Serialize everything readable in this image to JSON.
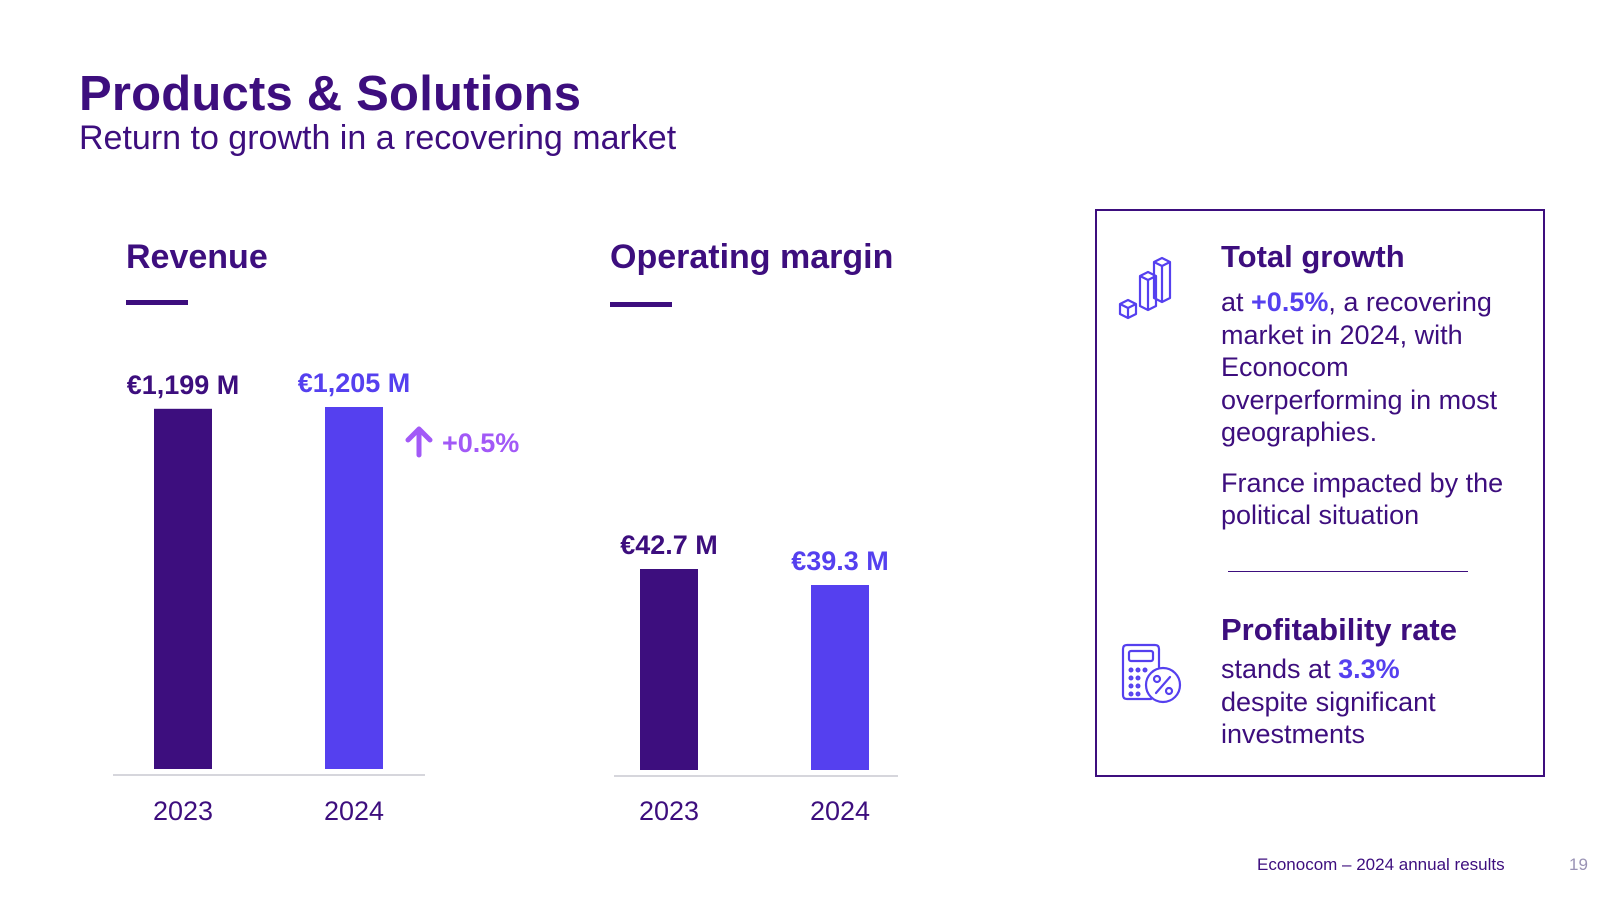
{
  "header": {
    "title": "Products & Solutions",
    "subtitle": "Return to growth in a recovering market"
  },
  "chart_data": [
    {
      "type": "bar",
      "title": "Revenue",
      "categories": [
        "2023",
        "2024"
      ],
      "values": [
        1199,
        1205
      ],
      "value_labels": [
        "€1,199 M",
        "€1,205 M"
      ],
      "unit": "€ M",
      "annotation": "+0.5%",
      "colors": [
        "#3d0e7e",
        "#5540ef"
      ]
    },
    {
      "type": "bar",
      "title": "Operating margin",
      "categories": [
        "2023",
        "2024"
      ],
      "values": [
        42.7,
        39.3
      ],
      "value_labels": [
        "€42.7 M",
        "€39.3 M"
      ],
      "unit": "€ M",
      "colors": [
        "#3d0e7e",
        "#5540ef"
      ]
    }
  ],
  "panel": {
    "growth": {
      "icon": "bar-growth-icon",
      "heading": "Total growth",
      "text_prefix": "at ",
      "text_highlight": "+0.5%",
      "text_suffix": ", a recovering market in 2024, with Econocom overperforming in most geographies.",
      "note": "France impacted by the political situation"
    },
    "profitability": {
      "icon": "calculator-percent-icon",
      "heading": "Profitability rate",
      "text_prefix": "stands at ",
      "text_highlight": "3.3%",
      "text_suffix": "despite significant investments"
    }
  },
  "footer": {
    "text": "Econocom – 2024 annual results",
    "page_number": "19"
  },
  "colors": {
    "primary": "#3d0e7e",
    "accent": "#5540ef",
    "growth": "#a259f7"
  }
}
